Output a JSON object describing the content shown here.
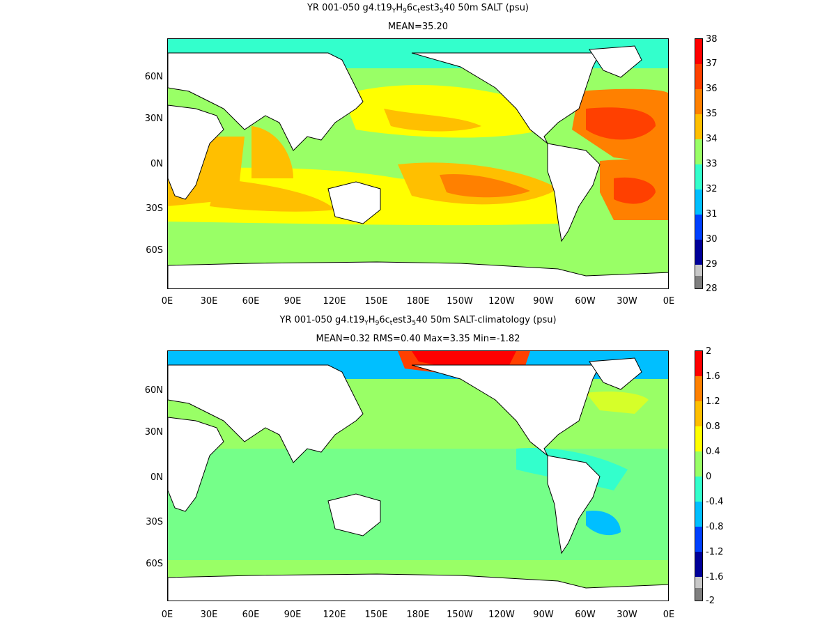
{
  "colors": {
    "palette": [
      "#7f7f7f",
      "#c8c8c8",
      "#000099",
      "#0000cc",
      "#0040ff",
      "#0080ff",
      "#00bfff",
      "#33ffcc",
      "#99ff66",
      "#ffff00",
      "#ffbf00",
      "#ff8000",
      "#ff4000",
      "#ff0000"
    ]
  },
  "top_panel": {
    "title": {
      "pre": "YR 001-050 g4.t19",
      "s1": "Y",
      "m1": "H",
      "s2": "9",
      "m2": "6c",
      "s3": "t",
      "m3": "est3",
      "s4": "5",
      "post": "40 50m SALT (psu)"
    },
    "subtitle": "MEAN=35.20",
    "lat_labels": [
      "60N",
      "30N",
      "0N",
      "30S",
      "60S"
    ],
    "lon_labels": [
      "0E",
      "30E",
      "60E",
      "90E",
      "120E",
      "150E",
      "180E",
      "150W",
      "120W",
      "90W",
      "60W",
      "30W",
      "0E"
    ],
    "colorbar_ticks": [
      "38",
      "37",
      "36",
      "35",
      "34",
      "33",
      "32",
      "31",
      "30",
      "29",
      "28"
    ]
  },
  "bottom_panel": {
    "title": {
      "pre": "YR 001-050 g4.t19",
      "s1": "Y",
      "m1": "H",
      "s2": "9",
      "m2": "6c",
      "s3": "t",
      "m3": "est3",
      "s4": "5",
      "post": "40 50m SALT-climatology (psu)"
    },
    "subtitle": "MEAN=0.32   RMS=0.40   Max=3.35   Min=-1.82",
    "lat_labels": [
      "60N",
      "30N",
      "0N",
      "30S",
      "60S"
    ],
    "lon_labels": [
      "0E",
      "30E",
      "60E",
      "90E",
      "120E",
      "150E",
      "180E",
      "150W",
      "120W",
      "90W",
      "60W",
      "30W",
      "0E"
    ],
    "colorbar_ticks": [
      "2",
      "1.6",
      "1.2",
      "0.8",
      "0.4",
      "0",
      "-0.4",
      "-0.8",
      "-1.2",
      "-1.6",
      "-2"
    ]
  }
}
